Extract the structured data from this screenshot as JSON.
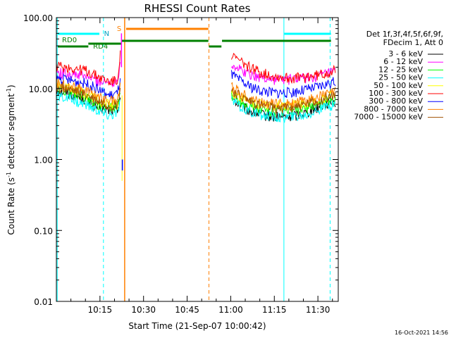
{
  "chart_data": {
    "type": "line",
    "title": "RHESSI Count Rates",
    "xlabel": "Start Time (21-Sep-07 10:00:42)",
    "ylabel_main": "Count Rate (s",
    "ylabel_sup1": "-1",
    "ylabel_mid": " detector segment",
    "ylabel_sup2": "-1",
    "ylabel_end": ")",
    "y_scale": "log",
    "ylim": [
      0.01,
      100
    ],
    "xlim_minutes": [
      0,
      97
    ],
    "x_ticks": [
      {
        "m": 15,
        "label": "10:15"
      },
      {
        "m": 30,
        "label": "10:30"
      },
      {
        "m": 45,
        "label": "10:45"
      },
      {
        "m": 60,
        "label": "11:00"
      },
      {
        "m": 75,
        "label": "11:15"
      },
      {
        "m": 90,
        "label": "11:30"
      }
    ],
    "y_ticks": [
      {
        "v": 100,
        "label": "100.00"
      },
      {
        "v": 10,
        "label": "10.00"
      },
      {
        "v": 1,
        "label": "1.00"
      },
      {
        "v": 0.1,
        "label": "0.10"
      },
      {
        "v": 0.01,
        "label": "0.01"
      }
    ],
    "legend_header": [
      "Det 1f,3f,4f,5f,6f,9f,",
      "FDecim 1, Att 0"
    ],
    "series": [
      {
        "name": "3 - 6 keV",
        "color": "#000000",
        "x": [
          0,
          5,
          10,
          14,
          18,
          21,
          22,
          23,
          55,
          57,
          60,
          65,
          70,
          75,
          80,
          85,
          90,
          94,
          96
        ],
        "y": [
          9.5,
          8.5,
          7,
          5.5,
          5,
          5,
          8,
          null,
          null,
          null,
          7.5,
          5.2,
          4.3,
          4,
          4,
          4.5,
          5.5,
          6.5,
          6.5
        ]
      },
      {
        "name": "6 - 12 keV",
        "color": "#ff00ff",
        "x": [
          0,
          5,
          10,
          14,
          18,
          21,
          22,
          23,
          55,
          57,
          60,
          65,
          70,
          75,
          80,
          85,
          90,
          94,
          96
        ],
        "y": [
          17,
          16,
          15,
          13,
          12,
          13,
          25,
          null,
          null,
          null,
          22,
          17,
          14.5,
          13.5,
          13.5,
          14,
          15,
          16.5,
          17
        ]
      },
      {
        "name": "12 - 25 keV",
        "color": "#00ff00",
        "x": [
          0,
          5,
          10,
          14,
          18,
          21,
          22,
          23,
          55,
          57,
          60,
          65,
          70,
          75,
          80,
          85,
          90,
          94,
          96
        ],
        "y": [
          10,
          9,
          7.5,
          6,
          5.5,
          5.5,
          9,
          null,
          null,
          null,
          8,
          6,
          5,
          4.8,
          4.8,
          5.2,
          6,
          7,
          7
        ]
      },
      {
        "name": "25 - 50 keV",
        "color": "#00ffff",
        "x": [
          0,
          5,
          10,
          14,
          18,
          21,
          22,
          23,
          55,
          57,
          60,
          65,
          70,
          75,
          80,
          85,
          90,
          94,
          96
        ],
        "y": [
          8,
          7,
          6,
          5,
          4.2,
          4.5,
          7,
          null,
          null,
          null,
          7,
          5,
          4.3,
          4,
          4,
          4.2,
          5,
          5.8,
          6
        ]
      },
      {
        "name": "50 - 100 keV",
        "color": "#ffff00",
        "x": [
          0,
          5,
          10,
          14,
          18,
          21,
          22,
          23,
          55,
          57,
          60,
          65,
          70,
          75,
          80,
          85,
          90,
          94,
          96
        ],
        "y": [
          11,
          10,
          8.5,
          7,
          6,
          6,
          10,
          null,
          null,
          null,
          9,
          7,
          6,
          5.8,
          5.8,
          6.2,
          7,
          8,
          8.2
        ]
      },
      {
        "name": "100 - 300 keV",
        "color": "#ff0000",
        "x": [
          0,
          5,
          10,
          14,
          18,
          21,
          22,
          23,
          55,
          57,
          60,
          65,
          70,
          75,
          80,
          85,
          90,
          94,
          96
        ],
        "y": [
          21,
          19.5,
          18,
          15,
          12.5,
          13,
          35,
          null,
          null,
          null,
          29,
          22,
          17,
          15,
          14,
          14.5,
          15.5,
          17,
          18
        ]
      },
      {
        "name": "300 - 800 keV",
        "color": "#0000ff",
        "x": [
          0,
          5,
          10,
          14,
          18,
          21,
          22,
          23,
          55,
          57,
          60,
          65,
          70,
          75,
          80,
          85,
          90,
          94,
          96
        ],
        "y": [
          14,
          13,
          12,
          10,
          8,
          8.5,
          14,
          null,
          null,
          null,
          16,
          11.5,
          9.5,
          8.8,
          8.8,
          9.5,
          10.5,
          12,
          12.5
        ]
      },
      {
        "name": "800 - 7000 keV",
        "color": "#ff8000",
        "x": [
          0,
          5,
          10,
          14,
          18,
          21,
          22,
          23,
          55,
          57,
          60,
          65,
          70,
          75,
          80,
          85,
          90,
          94,
          96
        ],
        "y": [
          12,
          11,
          9.5,
          8,
          6.8,
          6.8,
          12,
          null,
          null,
          null,
          11,
          8,
          6.5,
          6.2,
          6.2,
          6.7,
          7.6,
          8.6,
          9
        ]
      },
      {
        "name": "7000 - 15000 keV",
        "color": "#a05000",
        "x": [
          0,
          5,
          10,
          14,
          18,
          21,
          22,
          23,
          55,
          57,
          60,
          65,
          70,
          75,
          80,
          85,
          90,
          94,
          96
        ],
        "y": [
          10.5,
          9.5,
          8.2,
          6.8,
          5.8,
          5.8,
          10,
          null,
          null,
          null,
          9.5,
          7,
          5.8,
          5.4,
          5.4,
          5.8,
          6.6,
          7.6,
          8
        ]
      }
    ],
    "annotations": {
      "N_label": "N",
      "S_label": "S",
      "RD0_label": "RD0",
      "RD4_label": "RD4"
    }
  },
  "footer_date": "16-Oct-2021 14:56"
}
